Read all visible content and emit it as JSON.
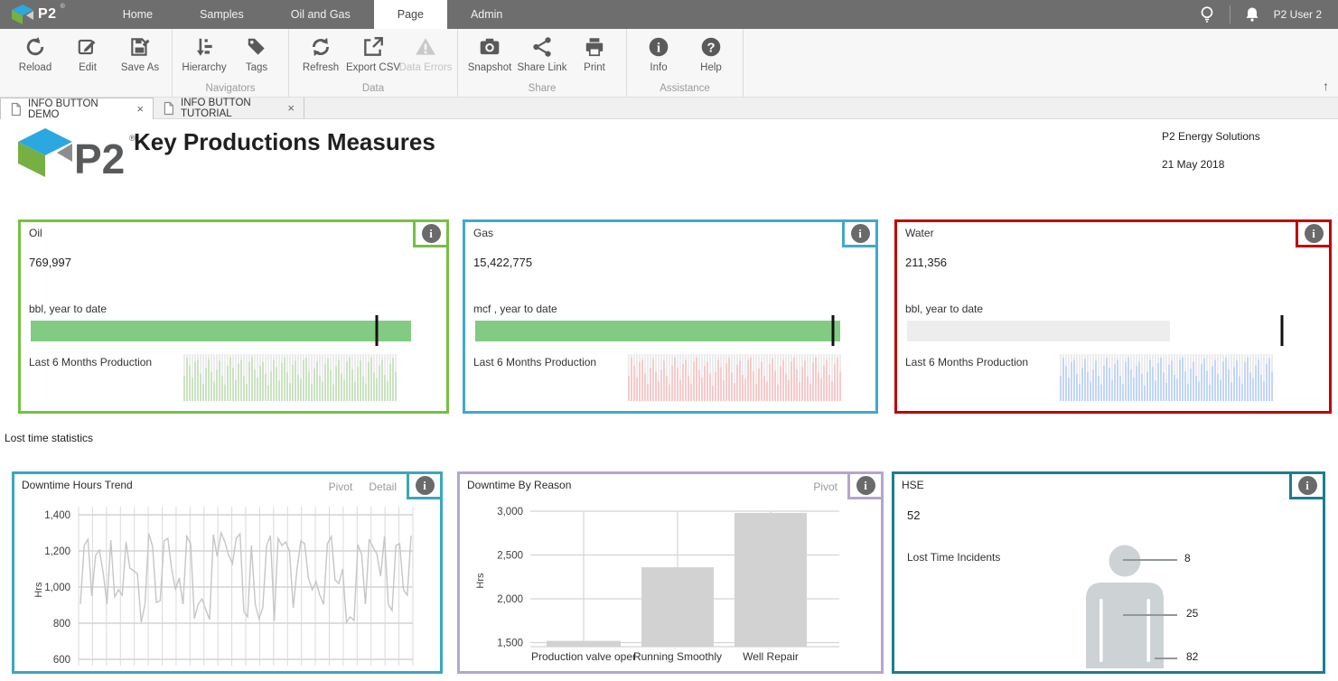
{
  "topbar": {
    "brand": "P2",
    "brand_reg": "®",
    "items": [
      {
        "label": "Home"
      },
      {
        "label": "Samples"
      },
      {
        "label": "Oil and Gas"
      },
      {
        "label": "Page",
        "active": true
      },
      {
        "label": "Admin"
      }
    ],
    "icons": [
      "lightbulb-icon",
      "bell-icon"
    ],
    "user": "P2 User 2"
  },
  "toolbar": {
    "collapse_icon": "↑",
    "groups": [
      {
        "label": "",
        "buttons": [
          {
            "label": "Reload",
            "icon": "reload-icon"
          },
          {
            "label": "Edit",
            "icon": "edit-icon"
          },
          {
            "label": "Save As",
            "icon": "save-as-icon"
          }
        ]
      },
      {
        "label": "Navigators",
        "buttons": [
          {
            "label": "Hierarchy",
            "icon": "hierarchy-icon"
          },
          {
            "label": "Tags",
            "icon": "tag-icon"
          }
        ]
      },
      {
        "label": "Data",
        "buttons": [
          {
            "label": "Refresh",
            "icon": "refresh-icon"
          },
          {
            "label": "Export CSV",
            "icon": "export-icon"
          },
          {
            "label": "Data Errors",
            "icon": "warning-icon",
            "disabled": true
          }
        ]
      },
      {
        "label": "Share",
        "buttons": [
          {
            "label": "Snapshot",
            "icon": "camera-icon"
          },
          {
            "label": "Share Link",
            "icon": "share-icon"
          },
          {
            "label": "Print",
            "icon": "printer-icon"
          }
        ]
      },
      {
        "label": "Assistance",
        "buttons": [
          {
            "label": "Info",
            "icon": "info-icon"
          },
          {
            "label": "Help",
            "icon": "help-icon"
          }
        ]
      }
    ]
  },
  "tabs": [
    {
      "label": "INFO BUTTON DEMO",
      "active": true,
      "close": "×"
    },
    {
      "label": "INFO BUTTON TUTORIAL",
      "active": false,
      "close": "×"
    }
  ],
  "header": {
    "logo_text": "P2",
    "logo_reg": "®",
    "title": "Key Productions Measures",
    "company": "P2 Energy Solutions",
    "date": "21 May 2018"
  },
  "kpis": [
    {
      "name": "Oil",
      "value": "769,997",
      "unit": "bbl, year to date",
      "spark_label": "Last 6 Months Production",
      "border": "#76c043",
      "bar_color": "#82cb82",
      "fill_pct": 100,
      "marker_pct": 91,
      "spark_color": "#cbe2c2"
    },
    {
      "name": "Gas",
      "value": "15,422,775",
      "unit": "mcf , year to date",
      "spark_label": "Last 6 Months Production",
      "border": "#41a9c9",
      "bar_color": "#82cb82",
      "fill_pct": 100,
      "marker_pct": 98,
      "spark_color": "#f6caca"
    },
    {
      "name": "Water",
      "value": "211,356",
      "unit": "bbl, year to date",
      "spark_label": "Last 6 Months Production",
      "border": "#c00000",
      "bar_color": "#ededed",
      "fill_pct": 68,
      "marker_pct": 97,
      "spark_color": "#c2d6f8"
    }
  ],
  "sparkline_values": [
    0.5,
    0.95,
    0.75,
    0.45,
    0.85,
    0.9,
    0.55,
    0.3,
    0.7,
    0.92,
    0.6,
    0.35,
    0.65,
    0.88,
    0.5,
    0.28,
    0.75,
    0.95,
    0.7,
    0.4,
    0.8,
    0.9,
    0.5,
    0.3,
    0.85,
    0.97,
    0.65,
    0.45,
    0.75,
    0.85,
    0.55,
    0.25,
    0.6,
    0.9,
    0.72,
    0.38,
    0.82,
    0.95,
    0.58,
    0.32,
    0.78,
    0.88,
    0.52,
    0.42,
    0.9,
    0.96,
    0.6,
    0.3,
    0.68,
    0.85,
    0.5,
    0.35,
    0.8,
    0.93,
    0.62,
    0.28,
    0.74,
    0.9,
    0.55,
    0.4,
    0.86,
    0.95,
    0.66,
    0.34,
    0.72,
    0.88,
    0.48,
    0.3,
    0.84,
    0.96,
    0.58,
    0.44,
    0.76,
    0.9,
    0.52,
    0.36,
    0.8,
    0.94,
    0.6
  ],
  "section_label": "Lost time statistics",
  "chart_data": [
    {
      "id": "downtime_hours_trend",
      "type": "line",
      "title": "Downtime Hours Trend",
      "links": [
        "Pivot",
        "Detail"
      ],
      "border": "#3aa7be",
      "line_color": "#c6c6c6",
      "grid": true,
      "ylabel": "Hrs",
      "yticks": [
        600,
        800,
        1000,
        1200,
        1400
      ],
      "ylim": [
        550,
        1450
      ],
      "values": [
        905,
        1230,
        1265,
        950,
        1175,
        1205,
        1080,
        905,
        1260,
        945,
        985,
        955,
        1250,
        1105,
        1090,
        1075,
        805,
        905,
        1295,
        1225,
        915,
        925,
        1255,
        1270,
        1100,
        985,
        1050,
        905,
        1280,
        1240,
        825,
        905,
        935,
        875,
        820,
        1290,
        1170,
        1300,
        1250,
        1175,
        1130,
        1270,
        1295,
        865,
        835,
        1230,
        905,
        825,
        885,
        1230,
        1285,
        815,
        1270,
        1230,
        1250,
        1200,
        885,
        1100,
        1255,
        1240,
        1050,
        985,
        1030,
        955,
        905,
        1240,
        1280,
        1040,
        1020,
        1100,
        805,
        835,
        815,
        1235,
        1180,
        905,
        1265,
        1220,
        1185,
        1060,
        1280,
        905,
        870,
        1230,
        1240,
        985,
        955,
        1285
      ]
    },
    {
      "id": "downtime_by_reason",
      "type": "bar",
      "title": "Downtime By Reason",
      "links": [
        "Pivot"
      ],
      "border": "#b5a6cd",
      "bar_color": "#d2d2d2",
      "grid": true,
      "ylabel": "Hrs",
      "yticks": [
        1500,
        2000,
        2500,
        3000
      ],
      "ylim": [
        1450,
        3050
      ],
      "categories": [
        "Production valve oper",
        "Running Smoothly",
        "Well Repair"
      ],
      "values": [
        1520,
        2360,
        2980
      ]
    },
    {
      "id": "hse",
      "type": "figure",
      "title": "HSE",
      "border": "#1b7e8e",
      "value": "52",
      "label": "Lost Time Incidents",
      "figure_color": "#cdd2d4",
      "callouts": [
        {
          "value": "8"
        },
        {
          "value": "25"
        },
        {
          "value": "82"
        }
      ]
    }
  ]
}
